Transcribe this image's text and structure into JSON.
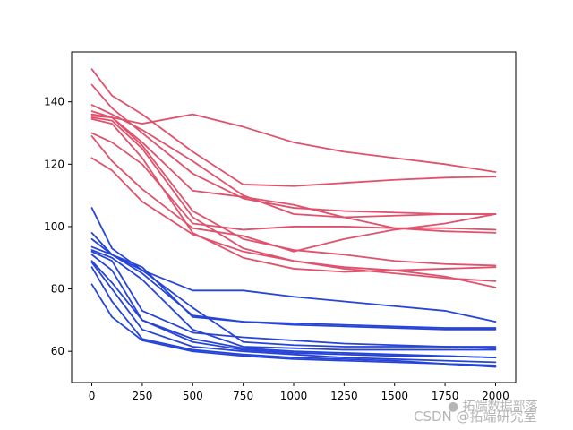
{
  "chart_data": {
    "type": "line",
    "title": "",
    "xlabel": "",
    "ylabel": "",
    "xlim": [
      -100,
      2100
    ],
    "ylim": [
      50,
      156
    ],
    "xticks": [
      0,
      250,
      500,
      750,
      1000,
      1250,
      1500,
      1750,
      2000
    ],
    "yticks": [
      60,
      80,
      100,
      120,
      140
    ],
    "grid": false,
    "legend": "none",
    "group_colors": {
      "red": "#e0516c",
      "blue": "#2644d8"
    },
    "x": [
      0,
      100,
      250,
      500,
      750,
      1000,
      1250,
      1500,
      1750,
      2000
    ],
    "series": [
      {
        "group": "red",
        "values": [
          150.5,
          142,
          136,
          124,
          113.5,
          113,
          114,
          115,
          115.7,
          116
        ]
      },
      {
        "group": "red",
        "values": [
          145.5,
          138,
          130,
          117,
          109,
          106,
          105,
          104.5,
          104,
          104
        ]
      },
      {
        "group": "red",
        "values": [
          139,
          136,
          131,
          121,
          110,
          104,
          103,
          103.5,
          104,
          104
        ]
      },
      {
        "group": "red",
        "values": [
          137,
          135,
          133,
          136,
          132,
          127,
          124,
          122,
          120,
          117.5
        ]
      },
      {
        "group": "red",
        "values": [
          136,
          135,
          127,
          111.5,
          109.5,
          107,
          103,
          99.5,
          98.5,
          98
        ]
      },
      {
        "group": "red",
        "values": [
          135.5,
          135,
          126,
          105,
          96,
          92.5,
          91,
          89,
          88,
          87.5
        ]
      },
      {
        "group": "red",
        "values": [
          135,
          134,
          125,
          103,
          93,
          89,
          86.5,
          85,
          83.5,
          82.5
        ]
      },
      {
        "group": "red",
        "values": [
          134.5,
          133,
          122,
          98,
          90,
          86.5,
          85.5,
          86,
          86.5,
          87
        ]
      },
      {
        "group": "red",
        "values": [
          130,
          127,
          120,
          101,
          99,
          100,
          100,
          99.5,
          99.5,
          99
        ]
      },
      {
        "group": "red",
        "values": [
          129,
          121,
          112,
          99.5,
          97,
          92,
          96,
          99,
          101,
          104
        ]
      },
      {
        "group": "red",
        "values": [
          122,
          118,
          108,
          97.5,
          92,
          89,
          87,
          86,
          84,
          80.5
        ]
      },
      {
        "group": "blue",
        "values": [
          106,
          93,
          86,
          79.5,
          79.5,
          77.5,
          76,
          74.5,
          73,
          69.5
        ]
      },
      {
        "group": "blue",
        "values": [
          98,
          91,
          85,
          71.5,
          69.5,
          69,
          68.5,
          68,
          67.5,
          67.5
        ]
      },
      {
        "group": "blue",
        "values": [
          96,
          91,
          87,
          71,
          69.5,
          68.5,
          68,
          67.5,
          67,
          67
        ]
      },
      {
        "group": "blue",
        "values": [
          93.5,
          91,
          86,
          74,
          63,
          62,
          61.5,
          61.5,
          61.5,
          61.5
        ]
      },
      {
        "group": "blue",
        "values": [
          92.5,
          90,
          83,
          67,
          61.5,
          61,
          60.5,
          60.5,
          60.5,
          60.5
        ]
      },
      {
        "group": "blue",
        "values": [
          92,
          89,
          73,
          66,
          64.5,
          63.5,
          62.5,
          62,
          61.5,
          61
        ]
      },
      {
        "group": "blue",
        "values": [
          91,
          86,
          70,
          64,
          61,
          60,
          59.5,
          59,
          58.5,
          58
        ]
      },
      {
        "group": "blue",
        "values": [
          89,
          82,
          70,
          63,
          60.5,
          59.5,
          59,
          58.5,
          58.5,
          58
        ]
      },
      {
        "group": "blue",
        "values": [
          88.5,
          80,
          67,
          61.5,
          60,
          59,
          58,
          57.5,
          57,
          56.5
        ]
      },
      {
        "group": "blue",
        "values": [
          87,
          76,
          64,
          60.5,
          59,
          58,
          57.5,
          57,
          56,
          55.5
        ]
      },
      {
        "group": "blue",
        "values": [
          81.5,
          71,
          63.5,
          60,
          58.5,
          57.5,
          57,
          56.5,
          56,
          55
        ]
      }
    ]
  },
  "watermark": {
    "top_text": "拓端数据部落",
    "bottom_text": "CSDN @拓端研究室"
  }
}
